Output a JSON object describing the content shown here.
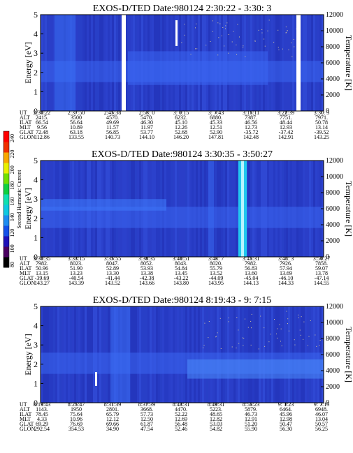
{
  "colorbar": {
    "title": "Second Harmonic Current",
    "ticks": [
      "240",
      "220",
      "200",
      "180",
      "160",
      "140",
      "120",
      "100",
      "80"
    ],
    "colors": [
      "#000000",
      "#4a0060",
      "#1e10b8",
      "#1450e8",
      "#1e8cf0",
      "#10c8e0",
      "#10e0b0",
      "#10d040",
      "#70e000",
      "#e8f000",
      "#f8a800",
      "#f03000",
      "#ff0000"
    ]
  },
  "chart_data": [
    {
      "type": "heatmap",
      "title": "EXOS-D/TED   Date:980124   2:30:22 - 3:30: 3",
      "ylabel": "Energy [eV]",
      "y2label": "Temperature [K]",
      "ylim": [
        0,
        5
      ],
      "y2lim": [
        0,
        12000
      ],
      "yticks": [
        "0",
        "1",
        "2",
        "3",
        "4",
        "5"
      ],
      "y2ticks": [
        "0",
        "2000",
        "4000",
        "6000",
        "8000",
        "10000",
        "12000"
      ],
      "table": {
        "rows": [
          "UT",
          "ALT",
          "ILAT",
          "MLT",
          "GLAT",
          "GLON"
        ],
        "columns": [
          [
            "2:30:22",
            "2415.",
            "66.54",
            "9.56",
            "72.48",
            "112.86"
          ],
          [
            "2:37:50",
            "3500",
            "56.64",
            "10.89",
            "63.18",
            "133.55"
          ],
          [
            "2:45:38",
            "4570.",
            "49.69",
            "11.57",
            "56.85",
            "140.73"
          ],
          [
            "2:53: 0",
            "5470.",
            "46.30",
            "11.97",
            "53.77",
            "144.10"
          ],
          [
            "3: 0:15",
            "6232.",
            "45.10",
            "12.26",
            "52.68",
            "146.20"
          ],
          [
            "3: 7:43",
            "6880.",
            "45.33",
            "12.51",
            "52.90",
            "147.81"
          ],
          [
            "3:15:11",
            "7387.",
            "46.56",
            "12.73",
            "-35.72",
            "142.48"
          ],
          [
            "3:22:39",
            "7751.",
            "48.44",
            "12.93",
            "-37.42",
            "142.91"
          ],
          [
            "3:30: 3",
            "7971.",
            "50.78",
            "13.14",
            "-39.52",
            "143.25"
          ]
        ]
      }
    },
    {
      "type": "heatmap",
      "title": "EXOS-D/TED   Date:980124   3:30:35 - 3:50:27",
      "ylabel": "Energy [eV]",
      "y2label": "Temperature [K]",
      "ylim": [
        0,
        5
      ],
      "y2lim": [
        0,
        12000
      ],
      "yticks": [
        "0",
        "1",
        "2",
        "3",
        "4",
        "5"
      ],
      "y2ticks": [
        "0",
        "2000",
        "4000",
        "6000",
        "8000",
        "10000",
        "12000"
      ],
      "table": {
        "rows": [
          "UT",
          "ALT",
          "ILAT",
          "MLT",
          "GLAT",
          "GLON"
        ],
        "columns": [
          [
            "3:30:35",
            "7982.",
            "50.96",
            "13.15",
            "-39.69",
            "143.27"
          ],
          [
            "3:33:15",
            "8023.",
            "51.90",
            "13.23",
            "-40.54",
            "143.39"
          ],
          [
            "3:35:55",
            "8047.",
            "52.89",
            "13.30",
            "-41.44",
            "143.52"
          ],
          [
            "3:38:35",
            "8052.",
            "53.93",
            "13.38",
            "-42.38",
            "143.66"
          ],
          [
            "3:40:51",
            "8043.",
            "54.84",
            "13.45",
            "-43.22",
            "143.80"
          ],
          [
            "3:43: 7",
            "8020.",
            "55.79",
            "13.52",
            "-44.09",
            "143.95"
          ],
          [
            "3:45:31",
            "7982.",
            "56.83",
            "13.60",
            "-45.04",
            "144.13"
          ],
          [
            "3:48: 3",
            "7926.",
            "57.94",
            "13.69",
            "-46.10",
            "144.33"
          ],
          [
            "3:50:27",
            "7858.",
            "59.07",
            "13.78",
            "-47.14",
            "144.55"
          ]
        ]
      }
    },
    {
      "type": "heatmap",
      "title": "EXOS-D/TED   Date:980124   8:19:43 - 9: 7:15",
      "ylabel": "Energy [eV]",
      "y2label": "Temperature [K]",
      "ylim": [
        0,
        5
      ],
      "y2lim": [
        0,
        12000
      ],
      "yticks": [
        "0",
        "1",
        "2",
        "3",
        "4",
        "5"
      ],
      "y2ticks": [
        "0",
        "2000",
        "4000",
        "6000",
        "8000",
        "10000",
        "12000"
      ],
      "table": {
        "rows": [
          "UT",
          "ALT",
          "ILAT",
          "MLT",
          "GLAT",
          "GLON"
        ],
        "columns": [
          [
            "8:19:43",
            "1143.",
            "78.45",
            "4.33",
            "69.29",
            "292.54"
          ],
          [
            "8:25:47",
            "1950",
            "75.64",
            "10.96",
            "76.69",
            "354.53"
          ],
          [
            "8:31:39",
            "2801.",
            "65.79",
            "12.12",
            "69.66",
            "34.90"
          ],
          [
            "8:37:39",
            "3668.",
            "57.73",
            "12.50",
            "61.87",
            "47.54"
          ],
          [
            "8:43:31",
            "4470.",
            "52.22",
            "12.69",
            "56.48",
            "52.46"
          ],
          [
            "8:49:31",
            "5223.",
            "48.65",
            "12.82",
            "53.03",
            "54.82"
          ],
          [
            "8:55:23",
            "5879.",
            "46.73",
            "12.91",
            "51.20",
            "55.90"
          ],
          [
            "9: 1:23",
            "6464.",
            "45.96",
            "12.98",
            "50.47",
            "56.30"
          ],
          [
            "9: 7:15",
            "6948.",
            "46.07",
            "13.04",
            "50.57",
            "56.25"
          ]
        ]
      }
    }
  ]
}
